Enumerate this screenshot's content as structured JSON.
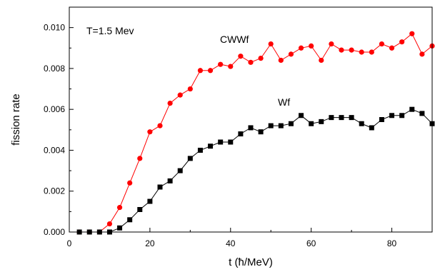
{
  "chart_data": {
    "type": "line",
    "xlabel": "t (ħ/MeV)",
    "ylabel": "fission rate",
    "xlim": [
      0,
      90
    ],
    "ylim": [
      0,
      0.011
    ],
    "xticks": [
      0,
      20,
      40,
      60,
      80
    ],
    "yticks": [
      0.0,
      0.002,
      0.004,
      0.006,
      0.008,
      0.01
    ],
    "ytick_labels": [
      "0.000",
      "0.002",
      "0.004",
      "0.006",
      "0.008",
      "0.010"
    ],
    "annotations": [
      "T=1.5 Mev"
    ],
    "grid": false,
    "series": [
      {
        "name": "CWWf",
        "color": "#ff0000",
        "marker": "circle",
        "x": [
          2.5,
          5,
          7.5,
          10,
          12.5,
          15,
          17.5,
          20,
          22.5,
          25,
          27.5,
          30,
          32.5,
          35,
          37.5,
          40,
          42.5,
          45,
          47.5,
          50,
          52.5,
          55,
          57.5,
          60,
          62.5,
          65,
          67.5,
          70,
          72.5,
          75,
          77.5,
          80,
          82.5,
          85,
          87.5,
          90
        ],
        "values": [
          0.0,
          0.0,
          0.0,
          0.0004,
          0.0012,
          0.0024,
          0.0036,
          0.0049,
          0.0052,
          0.0063,
          0.0067,
          0.007,
          0.0079,
          0.0079,
          0.0082,
          0.0081,
          0.0086,
          0.0083,
          0.0085,
          0.0092,
          0.0084,
          0.0087,
          0.009,
          0.0091,
          0.0084,
          0.0092,
          0.0089,
          0.0089,
          0.0088,
          0.0088,
          0.0092,
          0.009,
          0.0093,
          0.0097,
          0.0087,
          0.0091
        ]
      },
      {
        "name": "Wf",
        "color": "#000000",
        "marker": "square",
        "x": [
          2.5,
          5,
          7.5,
          10,
          12.5,
          15,
          17.5,
          20,
          22.5,
          25,
          27.5,
          30,
          32.5,
          35,
          37.5,
          40,
          42.5,
          45,
          47.5,
          50,
          52.5,
          55,
          57.5,
          60,
          62.5,
          65,
          67.5,
          70,
          72.5,
          75,
          77.5,
          80,
          82.5,
          85,
          87.5,
          90
        ],
        "values": [
          0.0,
          0.0,
          0.0,
          0.0,
          0.0002,
          0.0006,
          0.0011,
          0.0015,
          0.0022,
          0.0025,
          0.003,
          0.0036,
          0.004,
          0.0042,
          0.0044,
          0.0044,
          0.0048,
          0.0051,
          0.0049,
          0.0052,
          0.0052,
          0.0053,
          0.0057,
          0.0053,
          0.0054,
          0.0056,
          0.0056,
          0.0056,
          0.0053,
          0.0051,
          0.0055,
          0.0057,
          0.0057,
          0.006,
          0.0058,
          0.0053
        ]
      }
    ]
  }
}
